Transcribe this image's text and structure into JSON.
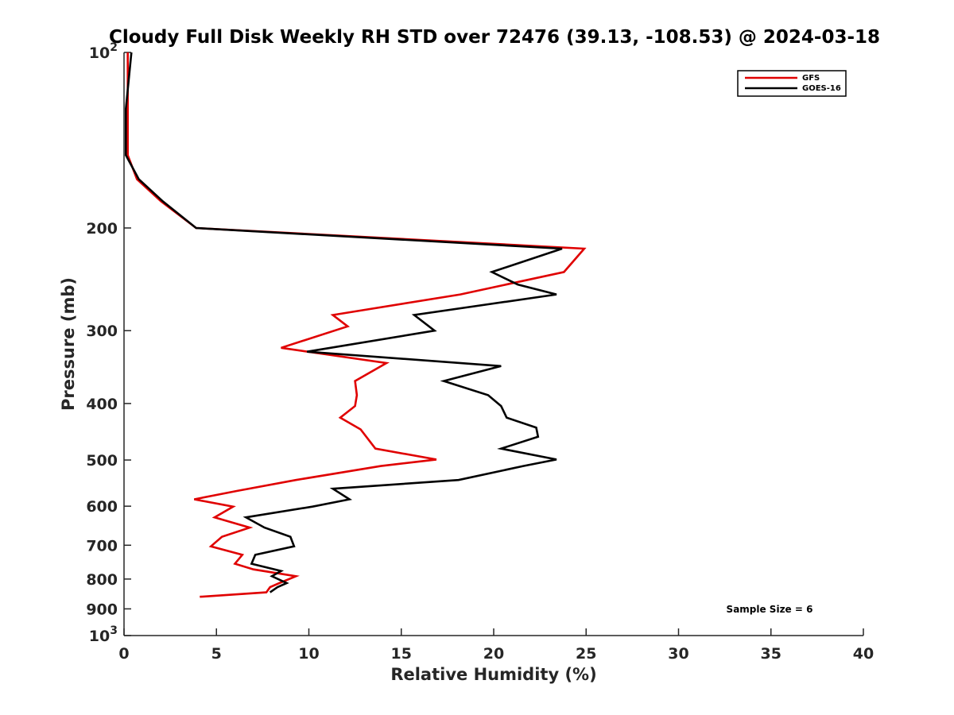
{
  "chart_data": {
    "type": "line",
    "title": "Cloudy Full Disk Weekly RH STD over 72476 (39.13, -108.53) @ 2024-03-18",
    "xlabel": "Relative Humidity (%)",
    "ylabel": "Pressure (mb)",
    "xlim": [
      0,
      40
    ],
    "ylim": [
      100,
      1000
    ],
    "y_scale": "log",
    "y_reversed": true,
    "x_ticks": [
      "0",
      "5",
      "10",
      "15",
      "20",
      "25",
      "30",
      "35",
      "40"
    ],
    "y_ticks": [
      {
        "value": 100,
        "base": "10",
        "exp": "2"
      },
      {
        "value": 200,
        "label": "200"
      },
      {
        "value": 300,
        "label": "300"
      },
      {
        "value": 400,
        "label": "400"
      },
      {
        "value": 500,
        "label": "500"
      },
      {
        "value": 600,
        "label": "600"
      },
      {
        "value": 700,
        "label": "700"
      },
      {
        "value": 800,
        "label": "800"
      },
      {
        "value": 900,
        "label": "900"
      },
      {
        "value": 1000,
        "base": "10",
        "exp": "3"
      }
    ],
    "legend_position": "top-right",
    "annotation": "Sample Size = 6",
    "series": [
      {
        "name": "GFS",
        "color": "#e00000",
        "points": [
          [
            0.2,
            100
          ],
          [
            0.2,
            125
          ],
          [
            0.2,
            150
          ],
          [
            0.7,
            165
          ],
          [
            2.0,
            180
          ],
          [
            3.9,
            200
          ],
          [
            24.9,
            217
          ],
          [
            23.8,
            238
          ],
          [
            18.2,
            260
          ],
          [
            11.3,
            282
          ],
          [
            12.1,
            295
          ],
          [
            8.5,
            321
          ],
          [
            14.2,
            341
          ],
          [
            12.5,
            366
          ],
          [
            12.6,
            387
          ],
          [
            12.5,
            404
          ],
          [
            11.7,
            423
          ],
          [
            12.8,
            443
          ],
          [
            13.6,
            478
          ],
          [
            16.9,
            499
          ],
          [
            13.9,
            512
          ],
          [
            9.3,
            541
          ],
          [
            6.1,
            565
          ],
          [
            3.8,
            584
          ],
          [
            5.9,
            601
          ],
          [
            4.9,
            627
          ],
          [
            6.8,
            653
          ],
          [
            5.3,
            677
          ],
          [
            4.7,
            703
          ],
          [
            6.4,
            727
          ],
          [
            6.0,
            753
          ],
          [
            7.0,
            770
          ],
          [
            9.3,
            791
          ],
          [
            8.4,
            813
          ],
          [
            7.9,
            826
          ],
          [
            7.7,
            843
          ],
          [
            4.1,
            858
          ]
        ]
      },
      {
        "name": "GOES-16",
        "color": "#000000",
        "points": [
          [
            0.4,
            100
          ],
          [
            0.1,
            125
          ],
          [
            0.1,
            150
          ],
          [
            0.8,
            165
          ],
          [
            2.1,
            180
          ],
          [
            3.9,
            200
          ],
          [
            23.7,
            217
          ],
          [
            19.9,
            238
          ],
          [
            21.3,
            250
          ],
          [
            23.4,
            260
          ],
          [
            15.7,
            282
          ],
          [
            16.8,
            300
          ],
          [
            9.9,
            326
          ],
          [
            20.4,
            345
          ],
          [
            17.3,
            366
          ],
          [
            19.7,
            387
          ],
          [
            20.4,
            404
          ],
          [
            20.7,
            423
          ],
          [
            22.3,
            440
          ],
          [
            22.4,
            456
          ],
          [
            20.4,
            478
          ],
          [
            23.4,
            499
          ],
          [
            21.6,
            512
          ],
          [
            18.1,
            541
          ],
          [
            11.3,
            560
          ],
          [
            12.2,
            584
          ],
          [
            10.2,
            601
          ],
          [
            6.6,
            627
          ],
          [
            7.6,
            653
          ],
          [
            9.0,
            677
          ],
          [
            9.2,
            703
          ],
          [
            7.1,
            727
          ],
          [
            6.9,
            753
          ],
          [
            8.5,
            775
          ],
          [
            8.0,
            791
          ],
          [
            8.8,
            813
          ],
          [
            8.3,
            826
          ],
          [
            7.9,
            843
          ]
        ]
      }
    ]
  }
}
